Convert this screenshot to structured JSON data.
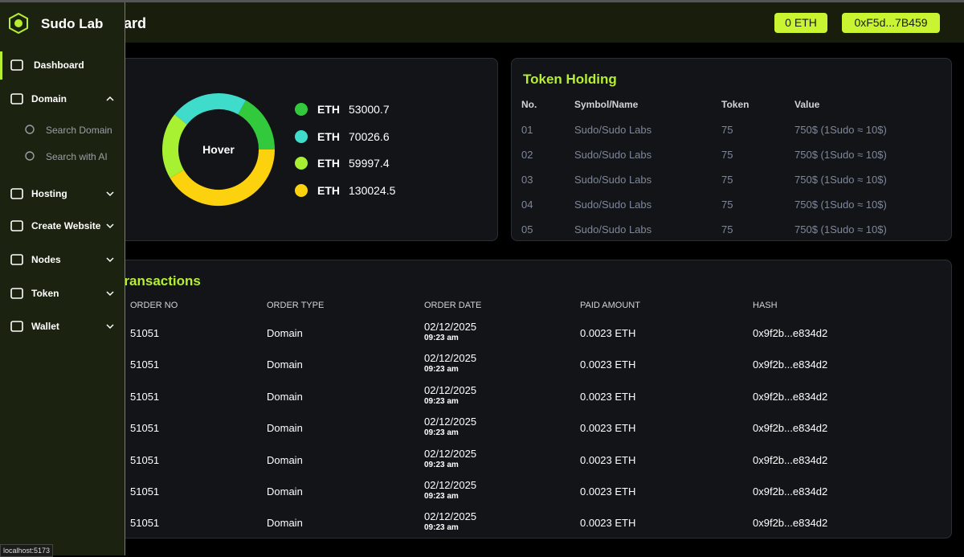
{
  "header": {
    "title": "Dashboard",
    "balance": "0 ETH",
    "wallet": "0xF5d...7B459"
  },
  "sidebar": {
    "brand": "Sudo Lab",
    "menu": [
      "Dashboard",
      "Domain",
      "Hosting",
      "Create Website",
      "Nodes",
      "Token",
      "Wallet"
    ],
    "domain_submenu": [
      "Search Domain",
      "Search with AI"
    ]
  },
  "chart_data": {
    "type": "donut",
    "center_label": "Hover",
    "categories": [
      "ETH",
      "ETH",
      "ETH",
      "ETH"
    ],
    "values": [
      53000.7,
      70026.6,
      59997.4,
      130024.5
    ],
    "colors": [
      "#33c93c",
      "#3fdccb",
      "#a8f032",
      "#fcd20f"
    ]
  },
  "token_holding": {
    "title": "Token Holding",
    "columns": [
      "No.",
      "Symbol/Name",
      "Token",
      "Value"
    ],
    "rows": [
      [
        "01",
        "Sudo/Sudo Labs",
        "75",
        "750$ (1Sudo ≈ 10$)"
      ],
      [
        "02",
        "Sudo/Sudo Labs",
        "75",
        "750$ (1Sudo ≈ 10$)"
      ],
      [
        "03",
        "Sudo/Sudo Labs",
        "75",
        "750$ (1Sudo ≈ 10$)"
      ],
      [
        "04",
        "Sudo/Sudo Labs",
        "75",
        "750$ (1Sudo ≈ 10$)"
      ],
      [
        "05",
        "Sudo/Sudo Labs",
        "75",
        "750$ (1Sudo ≈ 10$)"
      ]
    ]
  },
  "transactions": {
    "title": "Transactions",
    "columns": [
      "ORDER NO",
      "ORDER TYPE",
      "ORDER DATE",
      "PAID AMOUNT",
      "HASH"
    ],
    "rows": [
      [
        "51051",
        "Domain",
        "02/12/2025",
        "09:23 am",
        "0.0023 ETH",
        "0x9f2b...e834d2"
      ],
      [
        "51051",
        "Domain",
        "02/12/2025",
        "09:23 am",
        "0.0023 ETH",
        "0x9f2b...e834d2"
      ],
      [
        "51051",
        "Domain",
        "02/12/2025",
        "09:23 am",
        "0.0023 ETH",
        "0x9f2b...e834d2"
      ],
      [
        "51051",
        "Domain",
        "02/12/2025",
        "09:23 am",
        "0.0023 ETH",
        "0x9f2b...e834d2"
      ],
      [
        "51051",
        "Domain",
        "02/12/2025",
        "09:23 am",
        "0.0023 ETH",
        "0x9f2b...e834d2"
      ],
      [
        "51051",
        "Domain",
        "02/12/2025",
        "09:23 am",
        "0.0023 ETH",
        "0x9f2b...e834d2"
      ],
      [
        "51051",
        "Domain",
        "02/12/2025",
        "09:23 am",
        "0.0023 ETH",
        "0x9f2b...e834d2"
      ]
    ]
  },
  "status_bar": "localhost:5173"
}
